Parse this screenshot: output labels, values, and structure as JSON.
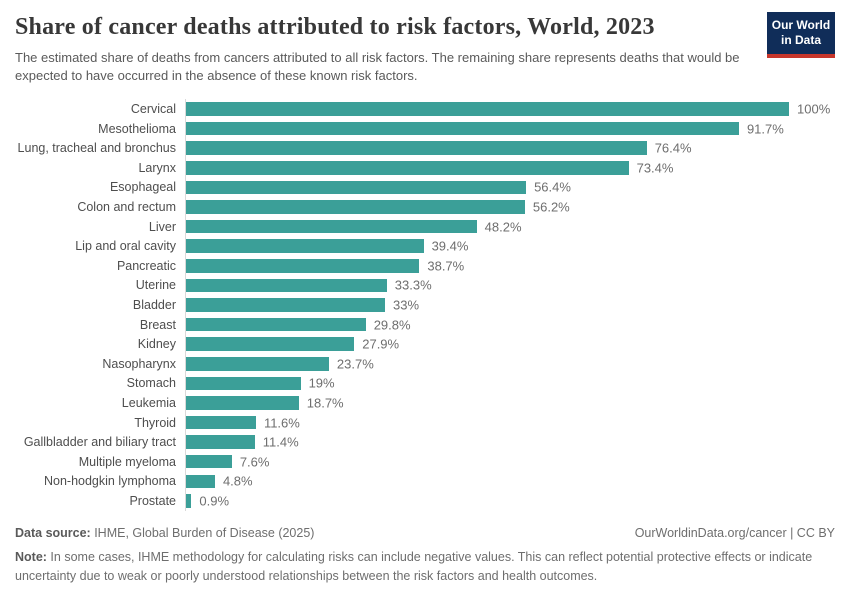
{
  "chart_data": {
    "type": "bar",
    "orientation": "horizontal",
    "title": "Share of cancer deaths attributed to risk factors, World, 2023",
    "subtitle": "The estimated share of deaths from cancers attributed to all risk factors. The remaining share represents deaths that would be expected to have occurred in the absence of these known risk factors.",
    "categories": [
      "Cervical",
      "Mesothelioma",
      "Lung, tracheal and bronchus",
      "Larynx",
      "Esophageal",
      "Colon and rectum",
      "Liver",
      "Lip and oral cavity",
      "Pancreatic",
      "Uterine",
      "Bladder",
      "Breast",
      "Kidney",
      "Nasopharynx",
      "Stomach",
      "Leukemia",
      "Thyroid",
      "Gallbladder and biliary tract",
      "Multiple myeloma",
      "Non-hodgkin lymphoma",
      "Prostate"
    ],
    "values": [
      100,
      91.7,
      76.4,
      73.4,
      56.4,
      56.2,
      48.2,
      39.4,
      38.7,
      33.3,
      33,
      29.8,
      27.9,
      23.7,
      19,
      18.7,
      11.6,
      11.4,
      7.6,
      4.8,
      0.9
    ],
    "value_labels": [
      "100%",
      "91.7%",
      "76.4%",
      "73.4%",
      "56.4%",
      "56.2%",
      "48.2%",
      "39.4%",
      "38.7%",
      "33.3%",
      "33%",
      "29.8%",
      "27.9%",
      "23.7%",
      "19%",
      "18.7%",
      "11.6%",
      "11.4%",
      "7.6%",
      "4.8%",
      "0.9%"
    ],
    "xlim": [
      0,
      100
    ],
    "grid": false,
    "legend": false,
    "bar_color": "#3b9f98",
    "axis_line_color": "#d9d9d9"
  },
  "header": {
    "logo": {
      "line1": "Our World",
      "line2": "in Data",
      "background": "#102d59",
      "stripe": "#c7362b"
    }
  },
  "footer": {
    "datasource_label": "Data source:",
    "datasource_text": " IHME, Global Burden of Disease (2025)",
    "attribution": "OurWorldinData.org/cancer | CC BY",
    "note_label": "Note:",
    "note_text": " In some cases, IHME methodology for calculating risks can include negative values. This can reflect potential protective effects or indicate uncertainty due to weak or poorly understood relationships between the risk factors and health outcomes."
  }
}
